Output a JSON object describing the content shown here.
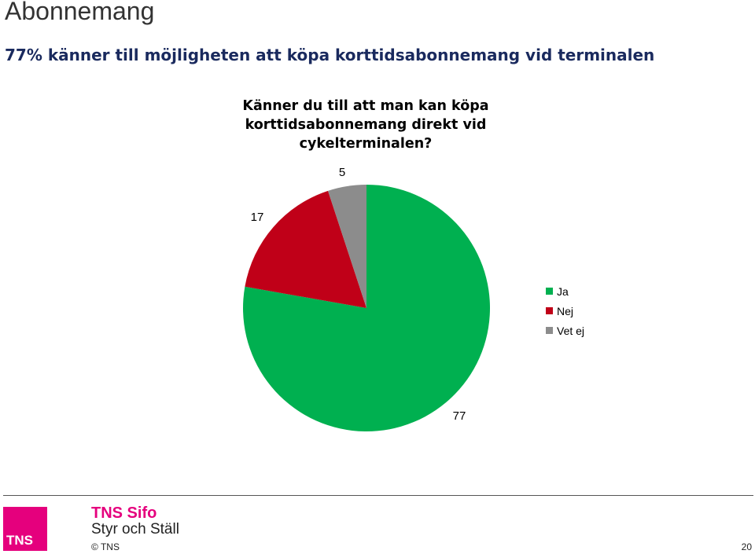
{
  "header": {
    "title": "Abonnemang",
    "subtitle": "77% känner till möjligheten att köpa korttidsabonnemang vid terminalen"
  },
  "chart_data": {
    "type": "pie",
    "title_lines": [
      "Känner du till att man kan köpa",
      "korttidsabonnemang direkt vid",
      "cykelterminalen?"
    ],
    "categories": [
      "Ja",
      "Nej",
      "Vet ej"
    ],
    "values": [
      77,
      17,
      5
    ],
    "data_labels": [
      "77",
      "17",
      "5"
    ],
    "colors": [
      "#00b050",
      "#c00018",
      "#8c8c8c"
    ],
    "start_angle": "12 o'clock",
    "direction": "clockwise",
    "legend": {
      "position": "right",
      "items": [
        "Ja",
        "Nej",
        "Vet ej"
      ]
    }
  },
  "footer": {
    "logo_text": "TNS",
    "brand": "TNS Sifo",
    "tagline": "Styr och Ställ",
    "copyright": "© TNS",
    "page_number": "20"
  }
}
